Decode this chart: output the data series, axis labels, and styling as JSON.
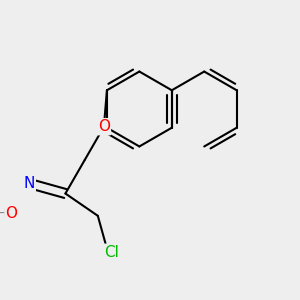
{
  "bg_color": "#eeeeee",
  "bond_color": "#000000",
  "bond_width": 1.5,
  "atom_colors": {
    "O": "#ff0000",
    "N": "#0000ff",
    "Cl": "#00bb00",
    "H": "#888888",
    "C": "#000000"
  },
  "font_size": 10,
  "fig_size": [
    3.0,
    3.0
  ],
  "dpi": 100
}
